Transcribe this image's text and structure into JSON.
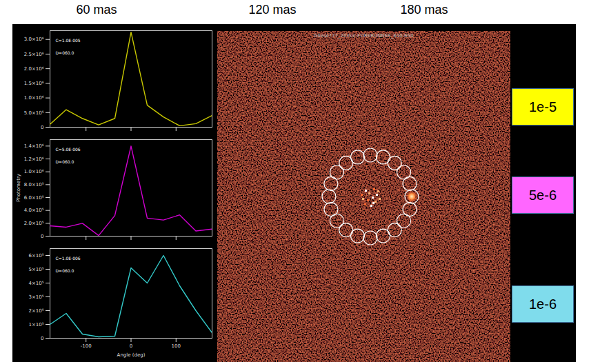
{
  "header": {
    "columns": [
      "60 mas",
      "120 mas",
      "180 mas"
    ]
  },
  "image": {
    "title": "Gliese777_20min-FORERUNNER_610-650"
  },
  "row_labels": [
    {
      "text": "1e-5",
      "color": "#ffff00"
    },
    {
      "text": "5e-6",
      "color": "#ff66ff"
    },
    {
      "text": "1e-6",
      "color": "#7fdcec"
    }
  ],
  "chart_data": [
    {
      "type": "line",
      "annotations": [
        "C=1.0E-005",
        "D=060.0"
      ],
      "color": "#c8c800",
      "x": [
        -180,
        -144,
        -108,
        -72,
        -36,
        0,
        36,
        72,
        108,
        144,
        180
      ],
      "values": [
        100000,
        600000,
        300000,
        80000,
        300000,
        3250000,
        750000,
        350000,
        50000,
        120000,
        400000
      ],
      "xlim": [
        -180,
        180
      ],
      "xticks": [
        -100,
        0,
        100
      ],
      "ylim": [
        0,
        3300000
      ],
      "yticks": [
        0,
        {
          "value": 500000,
          "label": "5.0×10⁵"
        },
        {
          "value": 1000000,
          "label": "1.0×10⁶"
        },
        {
          "value": 1500000,
          "label": "1.5×10⁶"
        },
        {
          "value": 2000000,
          "label": "2.0×10⁶"
        },
        {
          "value": 2500000,
          "label": "2.5×10⁶"
        },
        {
          "value": 3000000,
          "label": "3.0×10⁶"
        }
      ],
      "tick_labels": "y"
    },
    {
      "type": "line",
      "annotations": [
        "C=5.0E-006",
        "D=060.0"
      ],
      "color": "#d000d0",
      "ylabel": "Photometry",
      "x": [
        -180,
        -144,
        -108,
        -72,
        -36,
        0,
        36,
        72,
        108,
        144,
        180
      ],
      "values": [
        160000,
        140000,
        200000,
        10000,
        320000,
        1400000,
        280000,
        250000,
        330000,
        80000,
        110000
      ],
      "xlim": [
        -180,
        180
      ],
      "xticks": [
        -100,
        0,
        100
      ],
      "ylim": [
        0,
        1500000
      ],
      "yticks": [
        0,
        {
          "value": 200000,
          "label": "2.0×10⁵"
        },
        {
          "value": 400000,
          "label": "4.0×10⁵"
        },
        {
          "value": 600000,
          "label": "6.0×10⁵"
        },
        {
          "value": 800000,
          "label": "8.0×10⁵"
        },
        {
          "value": 1000000,
          "label": "1.0×10⁶"
        },
        {
          "value": 1200000,
          "label": "1.2×10⁶"
        },
        {
          "value": 1400000,
          "label": "1.4×10⁶"
        }
      ],
      "tick_labels": "y"
    },
    {
      "type": "line",
      "annotations": [
        "C=1.0E-006",
        "D=060.0"
      ],
      "color": "#33c8c8",
      "xlabel": "Angle (deg)",
      "x": [
        -180,
        -144,
        -108,
        -72,
        -36,
        0,
        36,
        72,
        108,
        144,
        180
      ],
      "values": [
        100000,
        180000,
        30000,
        10000,
        15000,
        510000,
        400000,
        600000,
        380000,
        200000,
        40000
      ],
      "xlim": [
        -180,
        180
      ],
      "xticks": [
        -100,
        0,
        100
      ],
      "ylim": [
        0,
        650000
      ],
      "yticks": [
        0,
        {
          "value": 100000,
          "label": "1×10⁵"
        },
        {
          "value": 200000,
          "label": "2×10⁵"
        },
        {
          "value": 300000,
          "label": "3×10⁵"
        },
        {
          "value": 400000,
          "label": "4×10⁵"
        },
        {
          "value": 500000,
          "label": "5×10⁵"
        },
        {
          "value": 600000,
          "label": "6×10⁵"
        }
      ]
    }
  ]
}
